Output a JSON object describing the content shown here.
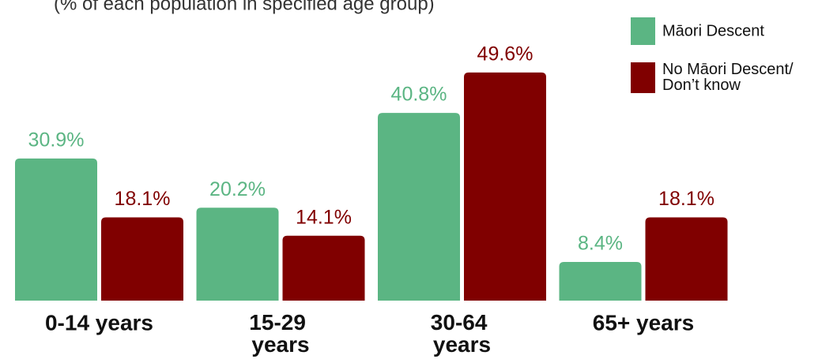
{
  "chart_data": {
    "type": "bar",
    "subtitle": "(% of each population in specified age group)",
    "categories": [
      "0-14 years",
      "15-29 years",
      "30-64 years",
      "65+ years"
    ],
    "series": [
      {
        "name": "Māori Descent",
        "color": "#5bb583",
        "values": [
          30.9,
          20.2,
          40.8,
          8.4
        ],
        "value_labels": [
          "30.9%",
          "20.2%",
          "40.8%",
          "8.4%"
        ]
      },
      {
        "name": "No Māori Descent/ Don’t know",
        "color": "#800000",
        "values": [
          18.1,
          14.1,
          49.6,
          18.1
        ],
        "value_labels": [
          "18.1%",
          "14.1%",
          "49.6%",
          "18.1%"
        ]
      }
    ],
    "legend": "top-right"
  }
}
